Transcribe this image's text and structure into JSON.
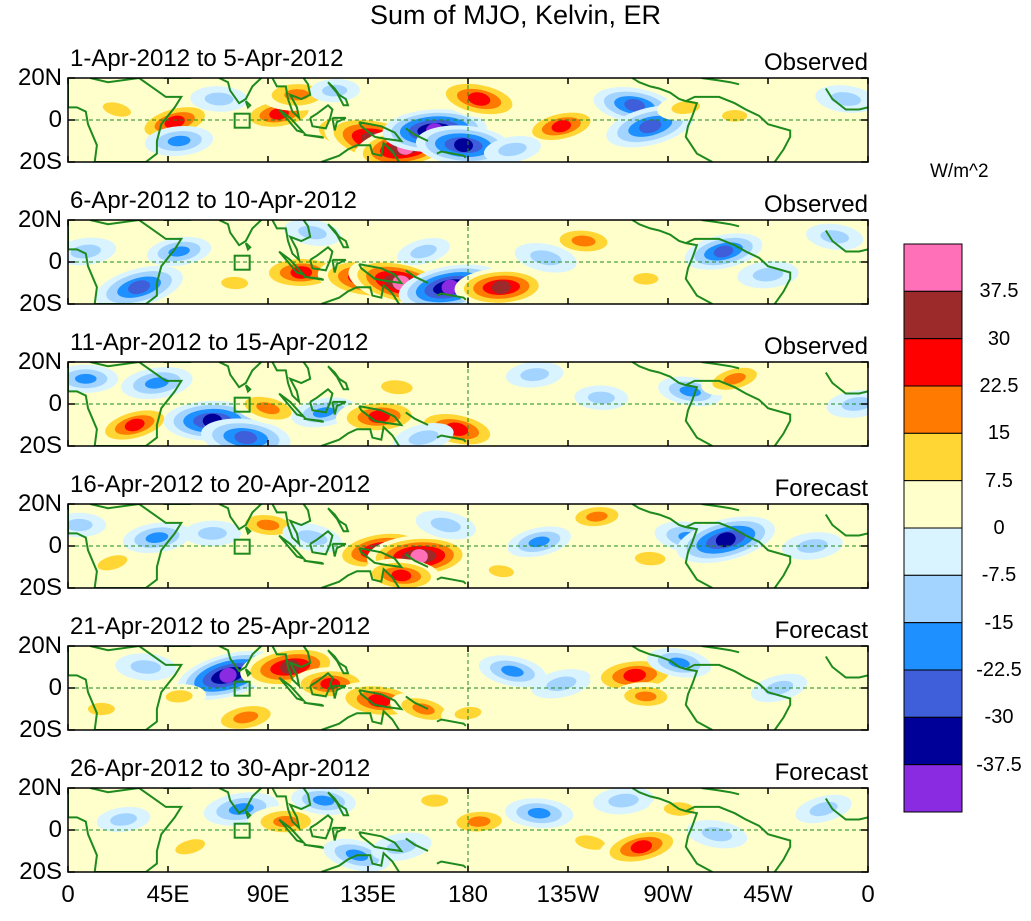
{
  "chart_data": {
    "type": "heatmap",
    "title": "Sum of MJO, Kelvin, ER",
    "x_tick_labels": [
      "0",
      "45E",
      "90E",
      "135E",
      "180",
      "135W",
      "90W",
      "45W",
      "0"
    ],
    "y_tick_labels": [
      "20N",
      "0",
      "20S"
    ],
    "x_range_deg": [
      0,
      360
    ],
    "y_range_deg": [
      -20,
      20
    ],
    "colorbar": {
      "units": "W/m^2",
      "levels": [
        -37.5,
        -30,
        -22.5,
        -15,
        -7.5,
        0,
        7.5,
        15,
        22.5,
        30,
        37.5
      ],
      "level_labels": [
        "37.5",
        "30",
        "22.5",
        "15",
        "7.5",
        "0",
        "-7.5",
        "-15",
        "-22.5",
        "-30",
        "-37.5"
      ],
      "colors_top_to_bottom": [
        "#ff70b8",
        "#9c2a2a",
        "#ff0000",
        "#ff7a00",
        "#ffd633",
        "#ffffcc",
        "#d9f3ff",
        "#a3d4ff",
        "#1e90ff",
        "#3e5fd9",
        "#000099",
        "#8a2be2"
      ]
    },
    "panels": [
      {
        "title": "1-Apr-2012 to 5-Apr-2012",
        "type": "Observed",
        "blobs": [
          {
            "lon": 48,
            "lat": -1,
            "v": 26
          },
          {
            "lon": 95,
            "lat": 3,
            "v": 24
          },
          {
            "lon": 103,
            "lat": 12,
            "v": 22
          },
          {
            "lon": 130,
            "lat": -6,
            "v": 33
          },
          {
            "lon": 140,
            "lat": -10,
            "v": 42
          },
          {
            "lon": 152,
            "lat": -13,
            "v": 38
          },
          {
            "lon": 165,
            "lat": -5,
            "v": -38
          },
          {
            "lon": 178,
            "lat": -12,
            "v": -33
          },
          {
            "lon": 185,
            "lat": 10,
            "v": 30
          },
          {
            "lon": 222,
            "lat": -3,
            "v": 24
          },
          {
            "lon": 50,
            "lat": -10,
            "v": -18
          },
          {
            "lon": 68,
            "lat": 10,
            "v": -12
          },
          {
            "lon": 255,
            "lat": 7,
            "v": -26
          },
          {
            "lon": 262,
            "lat": -3,
            "v": -30
          },
          {
            "lon": 278,
            "lat": 6,
            "v": 12
          },
          {
            "lon": 300,
            "lat": 2,
            "v": 8
          },
          {
            "lon": 350,
            "lat": 10,
            "v": -14
          },
          {
            "lon": 22,
            "lat": 5,
            "v": 12
          },
          {
            "lon": 200,
            "lat": -14,
            "v": -12
          },
          {
            "lon": 120,
            "lat": 14,
            "v": -8
          }
        ]
      },
      {
        "title": "6-Apr-2012 to 10-Apr-2012",
        "type": "Observed",
        "blobs": [
          {
            "lon": 32,
            "lat": -12,
            "v": -30
          },
          {
            "lon": 50,
            "lat": 5,
            "v": -16
          },
          {
            "lon": 105,
            "lat": -5,
            "v": 28
          },
          {
            "lon": 135,
            "lat": -8,
            "v": 36
          },
          {
            "lon": 150,
            "lat": -10,
            "v": 40
          },
          {
            "lon": 172,
            "lat": -12,
            "v": -38
          },
          {
            "lon": 195,
            "lat": -12,
            "v": 32
          },
          {
            "lon": 232,
            "lat": 10,
            "v": 20
          },
          {
            "lon": 215,
            "lat": 2,
            "v": -15
          },
          {
            "lon": 295,
            "lat": 5,
            "v": -24
          },
          {
            "lon": 315,
            "lat": -6,
            "v": -14
          },
          {
            "lon": 75,
            "lat": -10,
            "v": 10
          },
          {
            "lon": 110,
            "lat": 14,
            "v": -12
          },
          {
            "lon": 160,
            "lat": 5,
            "v": -10
          },
          {
            "lon": 8,
            "lat": 5,
            "v": -14
          },
          {
            "lon": 260,
            "lat": -8,
            "v": 8
          },
          {
            "lon": 345,
            "lat": 12,
            "v": -12
          }
        ]
      },
      {
        "title": "11-Apr-2012 to 15-Apr-2012",
        "type": "Observed",
        "blobs": [
          {
            "lon": 30,
            "lat": -10,
            "v": 25
          },
          {
            "lon": 40,
            "lat": 10,
            "v": -20
          },
          {
            "lon": 65,
            "lat": -8,
            "v": -34
          },
          {
            "lon": 80,
            "lat": -16,
            "v": -30
          },
          {
            "lon": 90,
            "lat": -2,
            "v": 20
          },
          {
            "lon": 115,
            "lat": -4,
            "v": -16
          },
          {
            "lon": 140,
            "lat": -6,
            "v": 28
          },
          {
            "lon": 148,
            "lat": 8,
            "v": 15
          },
          {
            "lon": 175,
            "lat": -12,
            "v": 30
          },
          {
            "lon": 160,
            "lat": -16,
            "v": -14
          },
          {
            "lon": 210,
            "lat": 14,
            "v": -12
          },
          {
            "lon": 240,
            "lat": 3,
            "v": -10
          },
          {
            "lon": 280,
            "lat": 6,
            "v": -16
          },
          {
            "lon": 300,
            "lat": 12,
            "v": 18
          },
          {
            "lon": 355,
            "lat": 0,
            "v": -14
          },
          {
            "lon": 8,
            "lat": 12,
            "v": -16
          }
        ]
      },
      {
        "title": "16-Apr-2012 to 20-Apr-2012",
        "type": "Forecast",
        "blobs": [
          {
            "lon": 20,
            "lat": -8,
            "v": 14
          },
          {
            "lon": 40,
            "lat": 4,
            "v": -18
          },
          {
            "lon": 65,
            "lat": 6,
            "v": -12
          },
          {
            "lon": 90,
            "lat": 10,
            "v": 18
          },
          {
            "lon": 110,
            "lat": 4,
            "v": -14
          },
          {
            "lon": 140,
            "lat": -2,
            "v": 32
          },
          {
            "lon": 158,
            "lat": -5,
            "v": 38
          },
          {
            "lon": 150,
            "lat": -14,
            "v": 24
          },
          {
            "lon": 170,
            "lat": 10,
            "v": -14
          },
          {
            "lon": 212,
            "lat": 2,
            "v": -16
          },
          {
            "lon": 238,
            "lat": 14,
            "v": 16
          },
          {
            "lon": 262,
            "lat": -6,
            "v": 14
          },
          {
            "lon": 280,
            "lat": 4,
            "v": -20
          },
          {
            "lon": 296,
            "lat": 3,
            "v": -36
          },
          {
            "lon": 335,
            "lat": 0,
            "v": -14
          },
          {
            "lon": 5,
            "lat": 10,
            "v": -10
          },
          {
            "lon": 195,
            "lat": -12,
            "v": 8
          }
        ]
      },
      {
        "title": "21-Apr-2012 to 25-Apr-2012",
        "type": "Forecast",
        "blobs": [
          {
            "lon": 72,
            "lat": 6,
            "v": -38
          },
          {
            "lon": 100,
            "lat": 10,
            "v": 36
          },
          {
            "lon": 118,
            "lat": 2,
            "v": 24
          },
          {
            "lon": 140,
            "lat": -6,
            "v": 30
          },
          {
            "lon": 160,
            "lat": -10,
            "v": 18
          },
          {
            "lon": 80,
            "lat": -14,
            "v": 22
          },
          {
            "lon": 50,
            "lat": -4,
            "v": 10
          },
          {
            "lon": 35,
            "lat": 10,
            "v": -14
          },
          {
            "lon": 200,
            "lat": 8,
            "v": -18
          },
          {
            "lon": 222,
            "lat": 2,
            "v": -14
          },
          {
            "lon": 255,
            "lat": 6,
            "v": 30
          },
          {
            "lon": 260,
            "lat": -4,
            "v": 16
          },
          {
            "lon": 275,
            "lat": 12,
            "v": -16
          },
          {
            "lon": 320,
            "lat": 0,
            "v": -12
          },
          {
            "lon": 180,
            "lat": -12,
            "v": 10
          },
          {
            "lon": 15,
            "lat": -10,
            "v": 10
          }
        ]
      },
      {
        "title": "26-Apr-2012 to 30-Apr-2012",
        "type": "Forecast",
        "blobs": [
          {
            "lon": 55,
            "lat": -8,
            "v": 14
          },
          {
            "lon": 78,
            "lat": 10,
            "v": -22
          },
          {
            "lon": 98,
            "lat": 4,
            "v": 22
          },
          {
            "lon": 115,
            "lat": 14,
            "v": -16
          },
          {
            "lon": 130,
            "lat": -12,
            "v": -18
          },
          {
            "lon": 150,
            "lat": -8,
            "v": -14
          },
          {
            "lon": 185,
            "lat": 4,
            "v": 18
          },
          {
            "lon": 212,
            "lat": 8,
            "v": -18
          },
          {
            "lon": 235,
            "lat": -6,
            "v": 14
          },
          {
            "lon": 258,
            "lat": -8,
            "v": 28
          },
          {
            "lon": 250,
            "lat": 14,
            "v": -14
          },
          {
            "lon": 275,
            "lat": 10,
            "v": 14
          },
          {
            "lon": 292,
            "lat": -2,
            "v": -14
          },
          {
            "lon": 340,
            "lat": 10,
            "v": -12
          },
          {
            "lon": 25,
            "lat": 5,
            "v": -10
          },
          {
            "lon": 165,
            "lat": 14,
            "v": 10
          }
        ]
      }
    ]
  }
}
